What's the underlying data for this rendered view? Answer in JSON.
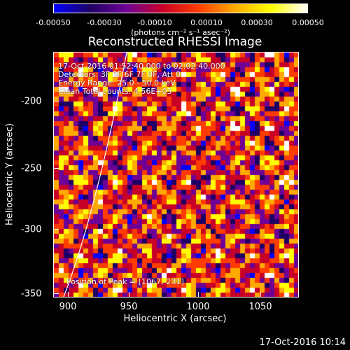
{
  "colorbar": {
    "ticks": [
      "-0.00050",
      "-0.00030",
      "-0.00010",
      "0.00010",
      "0.00030",
      "0.00050"
    ],
    "unit": "(photons cm⁻² s⁻¹ asec⁻²)",
    "colors": [
      "#0000ff",
      "#1e0064",
      "#6e0096",
      "#c80028",
      "#ff3c00",
      "#ffaa00",
      "#ffff00",
      "#ffffff"
    ]
  },
  "title": "Reconstructed RHESSI Image",
  "annotations": {
    "line1": "17-Oct-2016 01:52:40.000 to 02:02:40.000",
    "line2": "Detectors: 3F 5F 6F 7F 8F, Att 0",
    "line3": "Energy Range: 25.0 - 50.0 keV",
    "line4": "Clean    Total counts: 4.56E+03",
    "peak": "Position of Peak = [1067,-231]"
  },
  "axes": {
    "xlabel": "Heliocentric X (arcsec)",
    "ylabel": "Heliocentric Y (arcsec)",
    "xticks": [
      "900",
      "950",
      "1000",
      "1050"
    ],
    "yticks": [
      "-200",
      "-250",
      "-300",
      "-350"
    ]
  },
  "footer": {
    "date": "17-Oct-2016 10:14"
  }
}
